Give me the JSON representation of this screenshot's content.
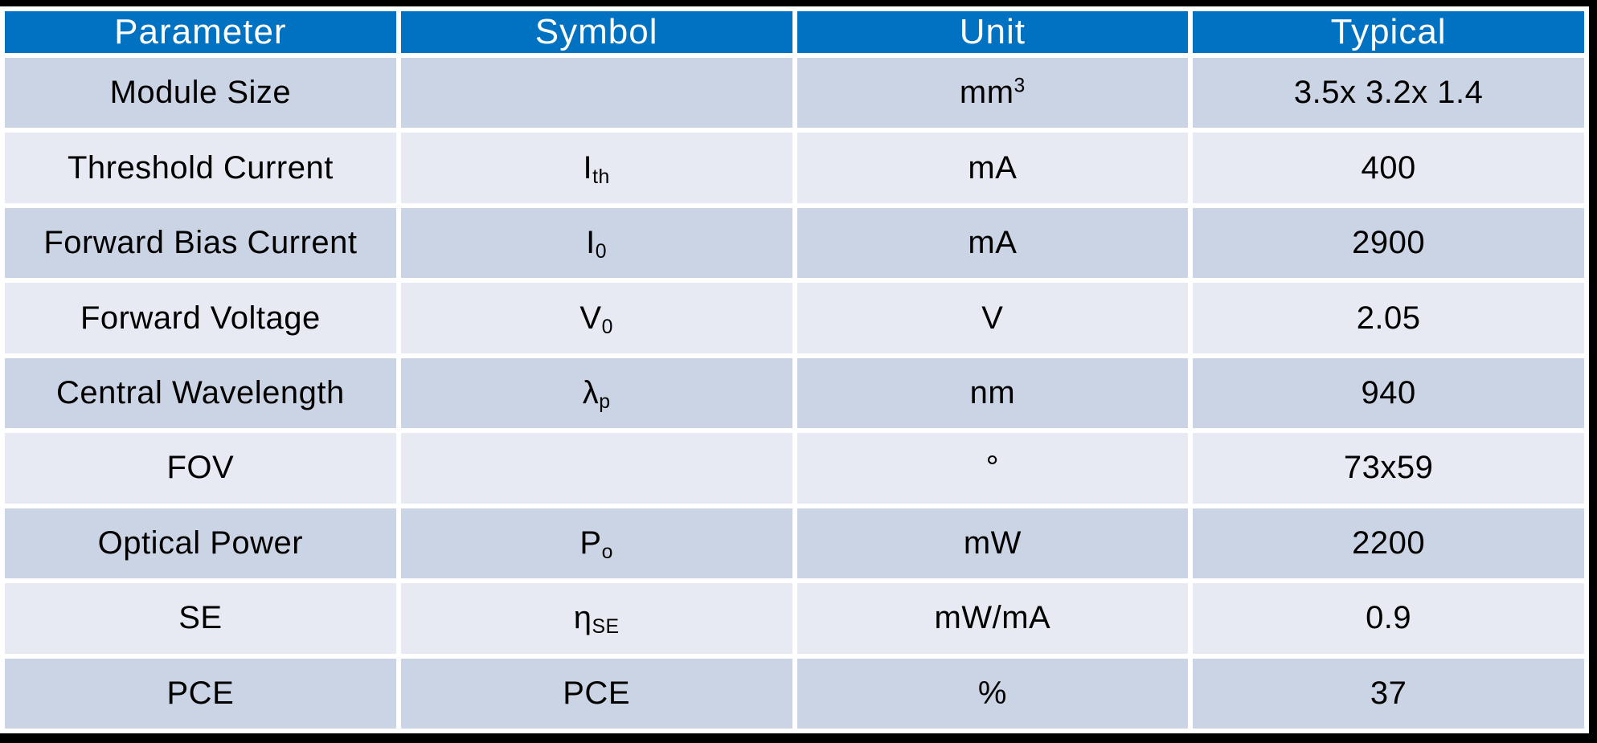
{
  "colors": {
    "header_bg": "#0072C1",
    "header_text": "#FFFFFF",
    "row_dark": "#CBD4E4",
    "row_light": "#E7EAF3",
    "body_text": "#000000",
    "gap": "#FFFFFF",
    "frame": "#000000"
  },
  "chart_data": {
    "type": "table",
    "title": "",
    "columns": [
      "Parameter",
      "Symbol",
      "Unit",
      "Typical"
    ],
    "rows": [
      {
        "parameter": "Module Size",
        "symbol": {
          "base": "",
          "sub": ""
        },
        "unit": {
          "base": "mm",
          "sup": "3"
        },
        "typical": "3.5x 3.2x 1.4"
      },
      {
        "parameter": "Threshold Current",
        "symbol": {
          "base": "I",
          "sub": "th"
        },
        "unit": {
          "base": "mA",
          "sup": ""
        },
        "typical": "400"
      },
      {
        "parameter": "Forward Bias Current",
        "symbol": {
          "base": "I",
          "sub": "0"
        },
        "unit": {
          "base": "mA",
          "sup": ""
        },
        "typical": "2900"
      },
      {
        "parameter": "Forward Voltage",
        "symbol": {
          "base": "V",
          "sub": "0"
        },
        "unit": {
          "base": "V",
          "sup": ""
        },
        "typical": "2.05"
      },
      {
        "parameter": "Central Wavelength",
        "symbol": {
          "base": "λ",
          "sub": "p"
        },
        "unit": {
          "base": "nm",
          "sup": ""
        },
        "typical": "940"
      },
      {
        "parameter": "FOV",
        "symbol": {
          "base": "",
          "sub": ""
        },
        "unit": {
          "base": "°",
          "sup": ""
        },
        "typical": "73x59"
      },
      {
        "parameter": "Optical Power",
        "symbol": {
          "base": "P",
          "sub": "o"
        },
        "unit": {
          "base": "mW",
          "sup": ""
        },
        "typical": "2200"
      },
      {
        "parameter": "SE",
        "symbol": {
          "base": "η",
          "sub": "SE"
        },
        "unit": {
          "base": "mW/mA",
          "sup": ""
        },
        "typical": "0.9"
      },
      {
        "parameter": "PCE",
        "symbol": {
          "base": "PCE",
          "sub": ""
        },
        "unit": {
          "base": "%",
          "sup": ""
        },
        "typical": "37"
      }
    ]
  }
}
